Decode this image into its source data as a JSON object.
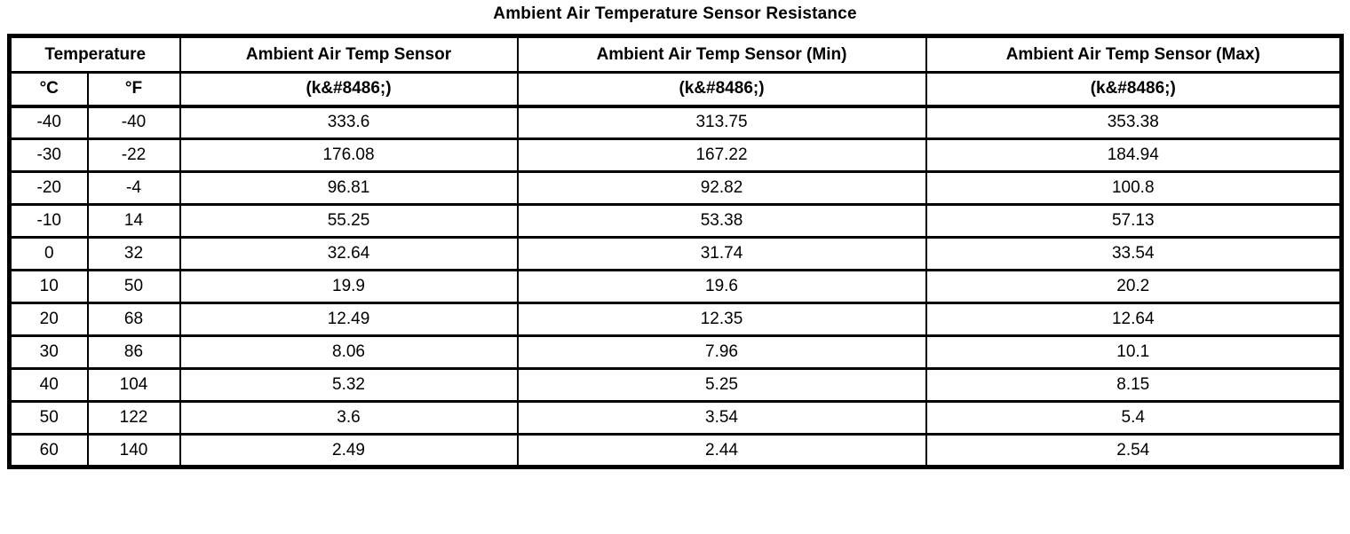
{
  "title": "Ambient Air Temperature Sensor Resistance",
  "table": {
    "header_group": {
      "temperature": "Temperature",
      "sensor": "Ambient Air Temp Sensor",
      "sensor_min": "Ambient Air Temp Sensor (Min)",
      "sensor_max": "Ambient Air Temp Sensor (Max)"
    },
    "subheader": {
      "celsius": "°C",
      "fahrenheit": "°F",
      "unit": "(k&#8486;)"
    },
    "rows": [
      {
        "c": "-40",
        "f": "-40",
        "sensor": "333.6",
        "min": "313.75",
        "max": "353.38"
      },
      {
        "c": "-30",
        "f": "-22",
        "sensor": "176.08",
        "min": "167.22",
        "max": "184.94"
      },
      {
        "c": "-20",
        "f": "-4",
        "sensor": "96.81",
        "min": "92.82",
        "max": "100.8"
      },
      {
        "c": "-10",
        "f": "14",
        "sensor": "55.25",
        "min": "53.38",
        "max": "57.13"
      },
      {
        "c": "0",
        "f": "32",
        "sensor": "32.64",
        "min": "31.74",
        "max": "33.54"
      },
      {
        "c": "10",
        "f": "50",
        "sensor": "19.9",
        "min": "19.6",
        "max": "20.2"
      },
      {
        "c": "20",
        "f": "68",
        "sensor": "12.49",
        "min": "12.35",
        "max": "12.64"
      },
      {
        "c": "30",
        "f": "86",
        "sensor": "8.06",
        "min": "7.96",
        "max": "10.1"
      },
      {
        "c": "40",
        "f": "104",
        "sensor": "5.32",
        "min": "5.25",
        "max": "8.15"
      },
      {
        "c": "50",
        "f": "122",
        "sensor": "3.6",
        "min": "3.54",
        "max": "5.4"
      },
      {
        "c": "60",
        "f": "140",
        "sensor": "2.49",
        "min": "2.44",
        "max": "2.54"
      }
    ]
  },
  "colors": {
    "text": "#000000",
    "background": "#ffffff",
    "border": "#000000"
  }
}
